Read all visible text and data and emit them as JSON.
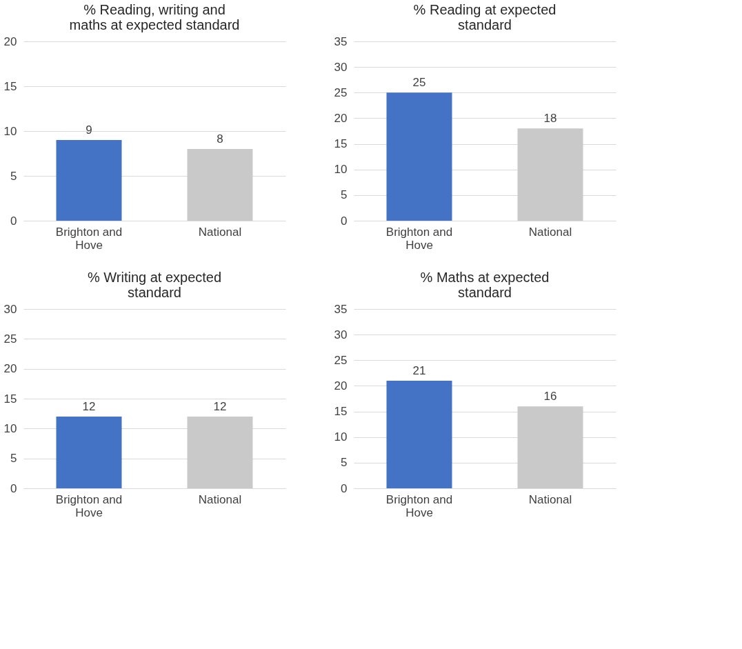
{
  "chart_data": [
    {
      "type": "bar",
      "title": "% Reading, writing and maths at expected standard",
      "categories": [
        "Brighton and Hove",
        "National"
      ],
      "values": [
        9,
        8
      ],
      "colors": [
        "#4472c4",
        "#c9c9c9"
      ],
      "ylim": [
        0,
        20
      ],
      "yticks": [
        0,
        5,
        10,
        15,
        20
      ],
      "grid": "y",
      "data_labels": true
    },
    {
      "type": "bar",
      "title": "% Reading at expected standard",
      "categories": [
        "Brighton and Hove",
        "National"
      ],
      "values": [
        25,
        18
      ],
      "colors": [
        "#4472c4",
        "#c9c9c9"
      ],
      "ylim": [
        0,
        35
      ],
      "yticks": [
        0,
        5,
        10,
        15,
        20,
        25,
        30,
        35
      ],
      "grid": "y",
      "data_labels": true
    },
    {
      "type": "bar",
      "title": "% Writing at expected standard",
      "categories": [
        "Brighton and Hove",
        "National"
      ],
      "values": [
        12,
        12
      ],
      "colors": [
        "#4472c4",
        "#c9c9c9"
      ],
      "ylim": [
        0,
        30
      ],
      "yticks": [
        0,
        5,
        10,
        15,
        20,
        25,
        30
      ],
      "grid": "y",
      "data_labels": true
    },
    {
      "type": "bar",
      "title": "% Maths at expected standard",
      "categories": [
        "Brighton and Hove",
        "National"
      ],
      "values": [
        21,
        16
      ],
      "colors": [
        "#4472c4",
        "#c9c9c9"
      ],
      "ylim": [
        0,
        35
      ],
      "yticks": [
        0,
        5,
        10,
        15,
        20,
        25,
        30,
        35
      ],
      "grid": "y",
      "data_labels": true
    }
  ]
}
